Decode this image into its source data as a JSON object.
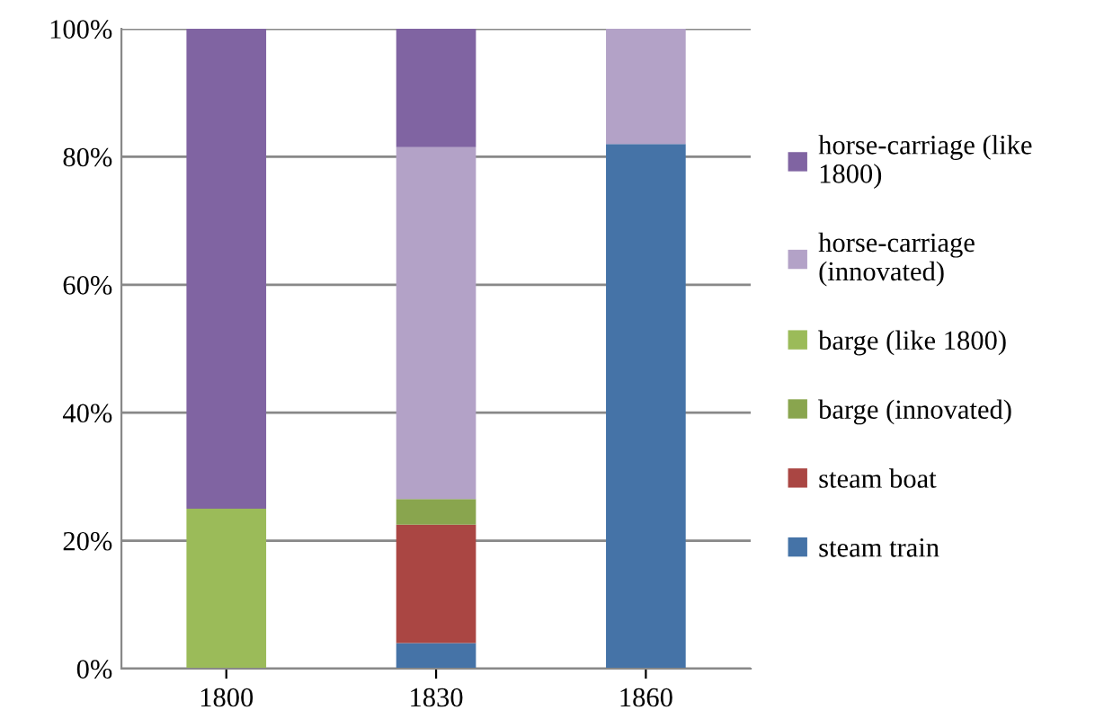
{
  "chart_data": {
    "type": "bar",
    "stacked": true,
    "categories": [
      "1800",
      "1830",
      "1860"
    ],
    "series": [
      {
        "name": "steam train",
        "color": "#4573a7",
        "values": [
          0,
          4,
          82
        ]
      },
      {
        "name": "steam boat",
        "color": "#aa4643",
        "values": [
          0,
          18.5,
          0
        ]
      },
      {
        "name": "barge (innovated)",
        "color": "#89a54e",
        "values": [
          0,
          4,
          0
        ]
      },
      {
        "name": "barge (like 1800)",
        "color": "#9bbb59",
        "values": [
          25,
          0,
          0
        ]
      },
      {
        "name": "horse-carriage (innovated)",
        "color": "#b3a2c7",
        "values": [
          0,
          55,
          18
        ]
      },
      {
        "name": "horse-carriage (like 1800)",
        "color": "#8064a2",
        "values": [
          75,
          18.5,
          0
        ]
      }
    ],
    "ylim": [
      0,
      100
    ],
    "yticks": [
      {
        "value": 0,
        "label": "0%"
      },
      {
        "value": 20,
        "label": "20%"
      },
      {
        "value": 40,
        "label": "40%"
      },
      {
        "value": 60,
        "label": "60%"
      },
      {
        "value": 80,
        "label": "80%"
      },
      {
        "value": 100,
        "label": "100%"
      }
    ],
    "grid": "y",
    "legend": "right"
  }
}
